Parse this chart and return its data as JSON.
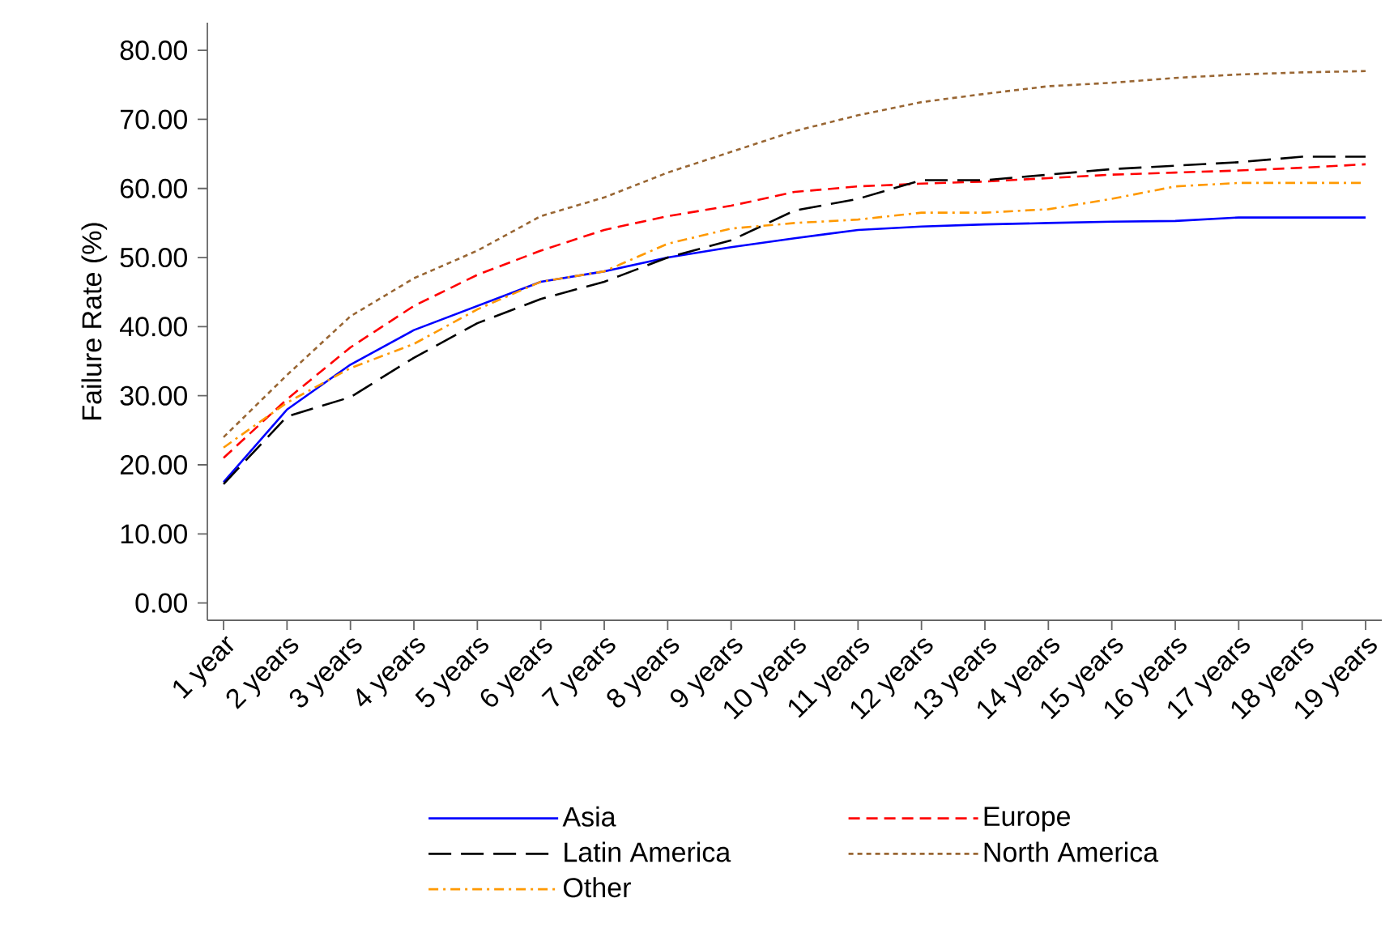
{
  "chart_data": {
    "type": "line",
    "ylabel": "Failure Rate (%)",
    "categories": [
      "1 year",
      "2 years",
      "3 years",
      "4 years",
      "5 years",
      "6 years",
      "7 years",
      "8 years",
      "9 years",
      "10 years",
      "11 years",
      "12 years",
      "13 years",
      "14 years",
      "15 years",
      "16 years",
      "17 years",
      "18 years",
      "19 years"
    ],
    "ylim": [
      -2.5,
      84
    ],
    "yticks": [
      {
        "value": 0,
        "label": "0.00"
      },
      {
        "value": 10,
        "label": "10.00"
      },
      {
        "value": 20,
        "label": "20.00"
      },
      {
        "value": 30,
        "label": "30.00"
      },
      {
        "value": 40,
        "label": "40.00"
      },
      {
        "value": 50,
        "label": "50.00"
      },
      {
        "value": 60,
        "label": "60.00"
      },
      {
        "value": 70,
        "label": "70.00"
      },
      {
        "value": 80,
        "label": "80.00"
      }
    ],
    "grid": false,
    "legend": "bottom",
    "marker": "none",
    "series": [
      {
        "name": "Asia",
        "color": "#0000ff",
        "line_style": "solid",
        "values": [
          17.5,
          28,
          34.5,
          39.5,
          43,
          46.5,
          48,
          50,
          51.5,
          52.8,
          54,
          54.5,
          54.8,
          55,
          55.2,
          55.3,
          55.8,
          55.8,
          55.8
        ]
      },
      {
        "name": "Europe",
        "color": "#ff0000",
        "line_style": "dashed",
        "values": [
          21,
          29.5,
          37,
          43,
          47.5,
          51,
          54,
          56,
          57.5,
          59.5,
          60.3,
          60.7,
          61,
          61.5,
          62,
          62.3,
          62.6,
          63,
          63.5
        ]
      },
      {
        "name": "Latin America",
        "color": "#000000",
        "line_style": "longdashed",
        "values": [
          17.2,
          27,
          29.8,
          35.5,
          40.5,
          44,
          46.5,
          50,
          52.5,
          56.8,
          58.5,
          61.2,
          61.2,
          62,
          62.8,
          63.3,
          63.8,
          64.6,
          64.6
        ]
      },
      {
        "name": "North America",
        "color": "#996633",
        "line_style": "dotted",
        "values": [
          24,
          33,
          41.5,
          47,
          51,
          56,
          58.7,
          62.3,
          65.3,
          68.3,
          70.6,
          72.5,
          73.7,
          74.8,
          75.3,
          76,
          76.5,
          76.8,
          77
        ]
      },
      {
        "name": "Other",
        "color": "#ff9900",
        "line_style": "dashdot",
        "values": [
          22.5,
          29,
          34,
          37.5,
          42.5,
          46.5,
          48,
          52,
          54.2,
          55,
          55.5,
          56.5,
          56.5,
          57,
          58.5,
          60.3,
          60.8,
          60.8,
          60.8
        ]
      }
    ]
  }
}
